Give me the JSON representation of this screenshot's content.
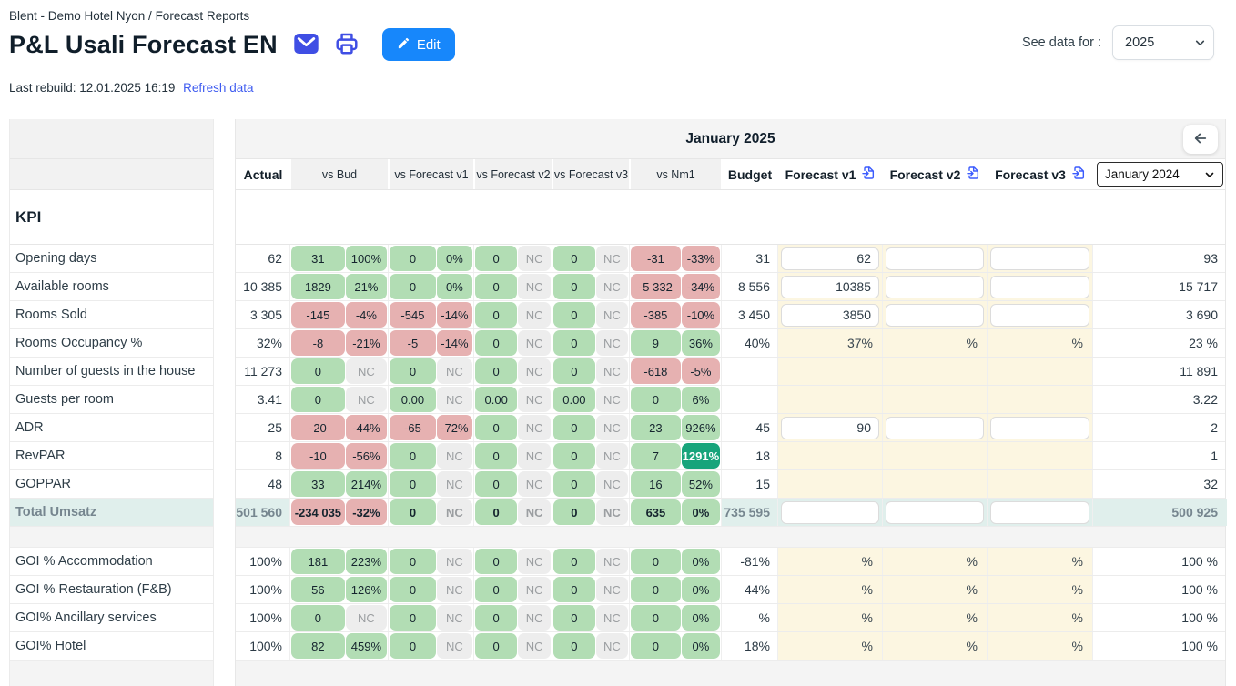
{
  "breadcrumb": "Blent - Demo Hotel Nyon / Forecast Reports",
  "title": "P&L Usali Forecast EN",
  "edit_button": "Edit",
  "last_rebuild": "Last rebuild: 12.01.2025 16:19",
  "refresh_link": "Refresh data",
  "see_data_for": "See data for :",
  "year_select_value": "2025",
  "colors": {
    "accent_blue": "#1787fb",
    "icon_indigo": "#3f4ee4",
    "link_blue": "#3e5bf0",
    "positive_badge": "#b2ddb4",
    "negative_badge": "#e6b1b1",
    "neutral_badge": "#ededed",
    "strong_positive_badge": "#17a47b",
    "forecast_cell": "#fcf6e1",
    "total_row": "#e0efec"
  },
  "table": {
    "month_title": "January 2025",
    "kpi_header": "KPI",
    "columns": {
      "actual": "Actual",
      "vs_bud": "vs Bud",
      "vs_forecast_v1": "vs Forecast v1",
      "vs_forecast_v2": "vs Forecast v2",
      "vs_forecast_v3": "vs Forecast v3",
      "vs_nm1": "vs Nm1",
      "budget": "Budget",
      "forecast_v1": "Forecast v1",
      "forecast_v2": "Forecast v2",
      "forecast_v3": "Forecast v3"
    },
    "month_select_value": "January 2024",
    "rows": [
      {
        "label": "Opening days",
        "actual": "62",
        "pairs": [
          {
            "v": "31",
            "vc": "green",
            "p": "100%",
            "pc": "green"
          },
          {
            "v": "0",
            "vc": "green",
            "p": "0%",
            "pc": "green"
          },
          {
            "v": "0",
            "vc": "green",
            "p": "NC",
            "pc": "gray"
          },
          {
            "v": "0",
            "vc": "green",
            "p": "NC",
            "pc": "gray"
          },
          {
            "v": "-31",
            "vc": "red",
            "p": "-33%",
            "pc": "red"
          }
        ],
        "budget": "31",
        "f1": {
          "type": "input",
          "value": "62"
        },
        "f2": {
          "type": "input",
          "value": ""
        },
        "f3": {
          "type": "input",
          "value": ""
        },
        "month": "93"
      },
      {
        "label": "Available rooms",
        "actual": "10 385",
        "pairs": [
          {
            "v": "1829",
            "vc": "green",
            "p": "21%",
            "pc": "green"
          },
          {
            "v": "0",
            "vc": "green",
            "p": "0%",
            "pc": "green"
          },
          {
            "v": "0",
            "vc": "green",
            "p": "NC",
            "pc": "gray"
          },
          {
            "v": "0",
            "vc": "green",
            "p": "NC",
            "pc": "gray"
          },
          {
            "v": "-5 332",
            "vc": "red",
            "p": "-34%",
            "pc": "red"
          }
        ],
        "budget": "8 556",
        "f1": {
          "type": "input",
          "value": "10385"
        },
        "f2": {
          "type": "input",
          "value": ""
        },
        "f3": {
          "type": "input",
          "value": ""
        },
        "month": "15 717"
      },
      {
        "label": "Rooms Sold",
        "actual": "3 305",
        "pairs": [
          {
            "v": "-145",
            "vc": "red",
            "p": "-4%",
            "pc": "red"
          },
          {
            "v": "-545",
            "vc": "red",
            "p": "-14%",
            "pc": "red"
          },
          {
            "v": "0",
            "vc": "green",
            "p": "NC",
            "pc": "gray"
          },
          {
            "v": "0",
            "vc": "green",
            "p": "NC",
            "pc": "gray"
          },
          {
            "v": "-385",
            "vc": "red",
            "p": "-10%",
            "pc": "red"
          }
        ],
        "budget": "3 450",
        "f1": {
          "type": "input",
          "value": "3850"
        },
        "f2": {
          "type": "input",
          "value": ""
        },
        "f3": {
          "type": "input",
          "value": ""
        },
        "month": "3 690"
      },
      {
        "label": "Rooms Occupancy %",
        "actual": "32%",
        "pairs": [
          {
            "v": "-8",
            "vc": "red",
            "p": "-21%",
            "pc": "red"
          },
          {
            "v": "-5",
            "vc": "red",
            "p": "-14%",
            "pc": "red"
          },
          {
            "v": "0",
            "vc": "green",
            "p": "NC",
            "pc": "gray"
          },
          {
            "v": "0",
            "vc": "green",
            "p": "NC",
            "pc": "gray"
          },
          {
            "v": "9",
            "vc": "green",
            "p": "36%",
            "pc": "green"
          }
        ],
        "budget": "40%",
        "f1": {
          "type": "text",
          "value": "37%"
        },
        "f2": {
          "type": "text",
          "value": "%"
        },
        "f3": {
          "type": "text",
          "value": "%"
        },
        "month": "23 %"
      },
      {
        "label": "Number of guests in the house",
        "actual": "11 273",
        "pairs": [
          {
            "v": "0",
            "vc": "green",
            "p": "NC",
            "pc": "gray"
          },
          {
            "v": "0",
            "vc": "green",
            "p": "NC",
            "pc": "gray"
          },
          {
            "v": "0",
            "vc": "green",
            "p": "NC",
            "pc": "gray"
          },
          {
            "v": "0",
            "vc": "green",
            "p": "NC",
            "pc": "gray"
          },
          {
            "v": "-618",
            "vc": "red",
            "p": "-5%",
            "pc": "red"
          }
        ],
        "budget": "",
        "f1": {
          "type": "text",
          "value": ""
        },
        "f2": {
          "type": "text",
          "value": ""
        },
        "f3": {
          "type": "text",
          "value": ""
        },
        "month": "11 891"
      },
      {
        "label": "Guests per room",
        "actual": "3.41",
        "pairs": [
          {
            "v": "0",
            "vc": "green",
            "p": "NC",
            "pc": "gray"
          },
          {
            "v": "0.00",
            "vc": "green",
            "p": "NC",
            "pc": "gray"
          },
          {
            "v": "0.00",
            "vc": "green",
            "p": "NC",
            "pc": "gray"
          },
          {
            "v": "0.00",
            "vc": "green",
            "p": "NC",
            "pc": "gray"
          },
          {
            "v": "0",
            "vc": "green",
            "p": "6%",
            "pc": "green"
          }
        ],
        "budget": "",
        "f1": {
          "type": "text",
          "value": ""
        },
        "f2": {
          "type": "text",
          "value": ""
        },
        "f3": {
          "type": "text",
          "value": ""
        },
        "month": "3.22"
      },
      {
        "label": "ADR",
        "actual": "25",
        "pairs": [
          {
            "v": "-20",
            "vc": "red",
            "p": "-44%",
            "pc": "red"
          },
          {
            "v": "-65",
            "vc": "red",
            "p": "-72%",
            "pc": "red"
          },
          {
            "v": "0",
            "vc": "green",
            "p": "NC",
            "pc": "gray"
          },
          {
            "v": "0",
            "vc": "green",
            "p": "NC",
            "pc": "gray"
          },
          {
            "v": "23",
            "vc": "green",
            "p": "926%",
            "pc": "green"
          }
        ],
        "budget": "45",
        "f1": {
          "type": "input",
          "value": "90"
        },
        "f2": {
          "type": "input",
          "value": ""
        },
        "f3": {
          "type": "input",
          "value": ""
        },
        "month": "2"
      },
      {
        "label": "RevPAR",
        "actual": "8",
        "pairs": [
          {
            "v": "-10",
            "vc": "red",
            "p": "-56%",
            "pc": "red"
          },
          {
            "v": "0",
            "vc": "green",
            "p": "NC",
            "pc": "gray"
          },
          {
            "v": "0",
            "vc": "green",
            "p": "NC",
            "pc": "gray"
          },
          {
            "v": "0",
            "vc": "green",
            "p": "NC",
            "pc": "gray"
          },
          {
            "v": "7",
            "vc": "green",
            "p": "1291%",
            "pc": "solid"
          }
        ],
        "budget": "18",
        "f1": {
          "type": "text",
          "value": ""
        },
        "f2": {
          "type": "text",
          "value": ""
        },
        "f3": {
          "type": "text",
          "value": ""
        },
        "month": "1"
      },
      {
        "label": "GOPPAR",
        "actual": "48",
        "pairs": [
          {
            "v": "33",
            "vc": "green",
            "p": "214%",
            "pc": "green"
          },
          {
            "v": "0",
            "vc": "green",
            "p": "NC",
            "pc": "gray"
          },
          {
            "v": "0",
            "vc": "green",
            "p": "NC",
            "pc": "gray"
          },
          {
            "v": "0",
            "vc": "green",
            "p": "NC",
            "pc": "gray"
          },
          {
            "v": "16",
            "vc": "green",
            "p": "52%",
            "pc": "green"
          }
        ],
        "budget": "15",
        "f1": {
          "type": "text",
          "value": ""
        },
        "f2": {
          "type": "text",
          "value": ""
        },
        "f3": {
          "type": "text",
          "value": ""
        },
        "month": "32"
      },
      {
        "label": "Total Umsatz",
        "total": true,
        "actual": "501 560",
        "pairs": [
          {
            "v": "-234 035",
            "vc": "red",
            "p": "-32%",
            "pc": "red"
          },
          {
            "v": "0",
            "vc": "green",
            "p": "NC",
            "pc": "gray"
          },
          {
            "v": "0",
            "vc": "green",
            "p": "NC",
            "pc": "gray"
          },
          {
            "v": "0",
            "vc": "green",
            "p": "NC",
            "pc": "gray"
          },
          {
            "v": "635",
            "vc": "green",
            "p": "0%",
            "pc": "green"
          }
        ],
        "budget": "735 595",
        "f1": {
          "type": "input",
          "value": ""
        },
        "f2": {
          "type": "input",
          "value": ""
        },
        "f3": {
          "type": "input",
          "value": ""
        },
        "month": "500 925"
      },
      {
        "gap": true
      },
      {
        "label": "GOI % Accommodation",
        "actual": "100%",
        "pairs": [
          {
            "v": "181",
            "vc": "green",
            "p": "223%",
            "pc": "green"
          },
          {
            "v": "0",
            "vc": "green",
            "p": "NC",
            "pc": "gray"
          },
          {
            "v": "0",
            "vc": "green",
            "p": "NC",
            "pc": "gray"
          },
          {
            "v": "0",
            "vc": "green",
            "p": "NC",
            "pc": "gray"
          },
          {
            "v": "0",
            "vc": "green",
            "p": "0%",
            "pc": "green"
          }
        ],
        "budget": "-81%",
        "f1": {
          "type": "text",
          "value": "%"
        },
        "f2": {
          "type": "text",
          "value": "%"
        },
        "f3": {
          "type": "text",
          "value": "%"
        },
        "month": "100 %"
      },
      {
        "label": "GOI % Restauration (F&B)",
        "actual": "100%",
        "pairs": [
          {
            "v": "56",
            "vc": "green",
            "p": "126%",
            "pc": "green"
          },
          {
            "v": "0",
            "vc": "green",
            "p": "NC",
            "pc": "gray"
          },
          {
            "v": "0",
            "vc": "green",
            "p": "NC",
            "pc": "gray"
          },
          {
            "v": "0",
            "vc": "green",
            "p": "NC",
            "pc": "gray"
          },
          {
            "v": "0",
            "vc": "green",
            "p": "0%",
            "pc": "green"
          }
        ],
        "budget": "44%",
        "f1": {
          "type": "text",
          "value": "%"
        },
        "f2": {
          "type": "text",
          "value": "%"
        },
        "f3": {
          "type": "text",
          "value": "%"
        },
        "month": "100 %"
      },
      {
        "label": "GOI% Ancillary services",
        "actual": "100%",
        "pairs": [
          {
            "v": "0",
            "vc": "green",
            "p": "NC",
            "pc": "gray"
          },
          {
            "v": "0",
            "vc": "green",
            "p": "NC",
            "pc": "gray"
          },
          {
            "v": "0",
            "vc": "green",
            "p": "NC",
            "pc": "gray"
          },
          {
            "v": "0",
            "vc": "green",
            "p": "NC",
            "pc": "gray"
          },
          {
            "v": "0",
            "vc": "green",
            "p": "0%",
            "pc": "green"
          }
        ],
        "budget": "%",
        "f1": {
          "type": "text",
          "value": "%"
        },
        "f2": {
          "type": "text",
          "value": "%"
        },
        "f3": {
          "type": "text",
          "value": "%"
        },
        "month": "100 %"
      },
      {
        "label": "GOI% Hotel",
        "actual": "100%",
        "pairs": [
          {
            "v": "82",
            "vc": "green",
            "p": "459%",
            "pc": "green"
          },
          {
            "v": "0",
            "vc": "green",
            "p": "NC",
            "pc": "gray"
          },
          {
            "v": "0",
            "vc": "green",
            "p": "NC",
            "pc": "gray"
          },
          {
            "v": "0",
            "vc": "green",
            "p": "NC",
            "pc": "gray"
          },
          {
            "v": "0",
            "vc": "green",
            "p": "0%",
            "pc": "green"
          }
        ],
        "budget": "18%",
        "f1": {
          "type": "text",
          "value": "%"
        },
        "f2": {
          "type": "text",
          "value": "%"
        },
        "f3": {
          "type": "text",
          "value": "%"
        },
        "month": "100 %"
      }
    ]
  }
}
